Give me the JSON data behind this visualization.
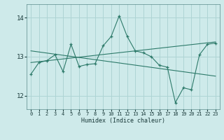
{
  "xlabel": "Humidex (Indice chaleur)",
  "xlim": [
    -0.5,
    23.5
  ],
  "ylim": [
    11.65,
    14.35
  ],
  "yticks": [
    12,
    13,
    14
  ],
  "xticks": [
    0,
    1,
    2,
    3,
    4,
    5,
    6,
    7,
    8,
    9,
    10,
    11,
    12,
    13,
    14,
    15,
    16,
    17,
    18,
    19,
    20,
    21,
    22,
    23
  ],
  "bg_color": "#ceeaea",
  "grid_color": "#aed4d4",
  "line_color": "#2d7a6a",
  "x_main": [
    0,
    1,
    2,
    3,
    4,
    5,
    6,
    7,
    8,
    9,
    10,
    11,
    12,
    13,
    14,
    15,
    16,
    17,
    18,
    19,
    20,
    21,
    22,
    23
  ],
  "y_main": [
    12.55,
    12.85,
    12.9,
    13.05,
    12.62,
    13.32,
    12.75,
    12.8,
    12.82,
    13.28,
    13.52,
    14.05,
    13.52,
    13.15,
    13.1,
    13.0,
    12.78,
    12.73,
    11.82,
    12.2,
    12.15,
    13.05,
    13.32,
    13.35
  ],
  "trend1_x": [
    0,
    23
  ],
  "trend1_y": [
    12.85,
    13.38
  ],
  "trend2_x": [
    0,
    23
  ],
  "trend2_y": [
    13.15,
    12.5
  ]
}
